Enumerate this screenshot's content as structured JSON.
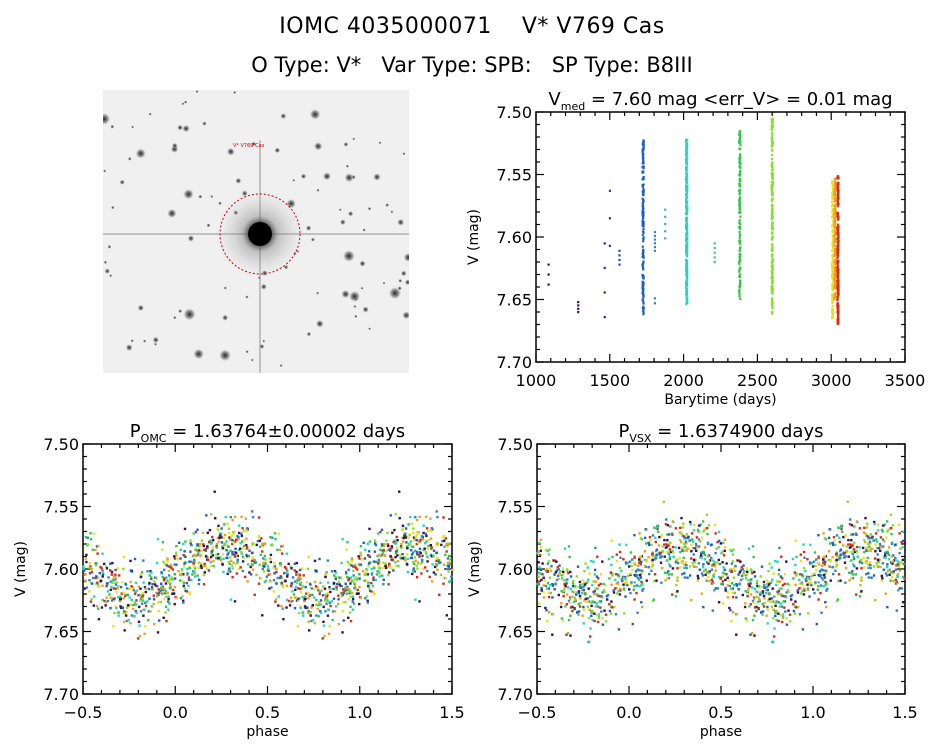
{
  "header": {
    "title": "IOMC 4035000071    V* V769 Cas",
    "subtitle": "O Type: V*   Var Type: SPB:   SP Type: B8III"
  },
  "image_panel": {
    "target_label": "V* V769 Cas",
    "circle_color": "#cc0000",
    "label_color": "#cc0000"
  },
  "chart_data": [
    {
      "id": "light-curve",
      "type": "scatter",
      "title": "V_med = 7.60 mag <err_V> = 0.01 mag",
      "title_parts": {
        "main": "V",
        "sub": "med",
        "rest": " = 7.60 mag <err_V> = 0.01 mag"
      },
      "xlabel": "Barytime (days)",
      "ylabel": "V (mag)",
      "xlim": [
        1000,
        3500
      ],
      "ylim": [
        7.7,
        7.5
      ],
      "y_inverted": true,
      "xticks": [
        1000,
        1500,
        2000,
        2500,
        3000,
        3500
      ],
      "xtick_labels": [
        "1000",
        "1500",
        "2000",
        "2500",
        "3000",
        "3500"
      ],
      "yticks": [
        7.5,
        7.55,
        7.6,
        7.65,
        7.7
      ],
      "ytick_labels": [
        "7.50",
        "7.55",
        "7.60",
        "7.65",
        "7.70"
      ],
      "groups": [
        {
          "t": 1085,
          "mag_min": 7.622,
          "mag_max": 7.638,
          "n": 3,
          "color": "#3a1050"
        },
        {
          "t": 1285,
          "mag_min": 7.652,
          "mag_max": 7.66,
          "n": 4,
          "color": "#4a1070"
        },
        {
          "t": 1465,
          "mag_min": 7.605,
          "mag_max": 7.664,
          "n": 4,
          "color": "#2a2a90"
        },
        {
          "t": 1500,
          "mag_min": 7.563,
          "mag_max": 7.607,
          "n": 3,
          "color": "#2a3aa0"
        },
        {
          "t": 1565,
          "mag_min": 7.611,
          "mag_max": 7.622,
          "n": 4,
          "color": "#2848a8"
        },
        {
          "t": 1725,
          "mag_min": 7.522,
          "mag_max": 7.662,
          "n": 160,
          "color": "#1f5fc8"
        },
        {
          "t": 1805,
          "mag_min": 7.596,
          "mag_max": 7.611,
          "n": 6,
          "color": "#2f86c8"
        },
        {
          "t": 1805,
          "mag_min": 7.649,
          "mag_max": 7.653,
          "n": 2,
          "color": "#2f86c8"
        },
        {
          "t": 1875,
          "mag_min": 7.578,
          "mag_max": 7.601,
          "n": 5,
          "color": "#3fa8d8"
        },
        {
          "t": 2020,
          "mag_min": 7.522,
          "mag_max": 7.657,
          "n": 260,
          "color": "#22d8b8"
        },
        {
          "t": 2210,
          "mag_min": 7.605,
          "mag_max": 7.62,
          "n": 5,
          "color": "#3cd06a"
        },
        {
          "t": 2380,
          "mag_min": 7.515,
          "mag_max": 7.65,
          "n": 150,
          "color": "#33c84a"
        },
        {
          "t": 2600,
          "mag_min": 7.505,
          "mag_max": 7.662,
          "n": 220,
          "color": "#8adf2a"
        },
        {
          "t": 3010,
          "mag_min": 7.555,
          "mag_max": 7.665,
          "n": 160,
          "color": "#e8e020"
        },
        {
          "t": 3025,
          "mag_min": 7.553,
          "mag_max": 7.65,
          "n": 160,
          "color": "#f0a020"
        },
        {
          "t": 3045,
          "mag_min": 7.551,
          "mag_max": 7.67,
          "n": 220,
          "color": "#dd2a10"
        }
      ]
    },
    {
      "id": "phase-omc",
      "type": "scatter",
      "title": "P_OMC = 1.63764±0.00002 days",
      "title_parts": {
        "main": "P",
        "sub": "OMC",
        "rest": " = 1.63764±0.00002 days"
      },
      "period_days": 1.63764,
      "period_error_days": 2e-05,
      "xlabel": "phase",
      "ylabel": "V (mag)",
      "xlim": [
        -0.5,
        1.5
      ],
      "ylim": [
        7.7,
        7.5
      ],
      "y_inverted": true,
      "xticks": [
        -0.5,
        0.0,
        0.5,
        1.0,
        1.5
      ],
      "xtick_labels": [
        "−0.5",
        "0.0",
        "0.5",
        "1.0",
        "1.5"
      ],
      "yticks": [
        7.5,
        7.55,
        7.6,
        7.65,
        7.7
      ],
      "ytick_labels": [
        "7.50",
        "7.55",
        "7.60",
        "7.65",
        "7.70"
      ],
      "model": {
        "mean": 7.602,
        "amplitude": 0.022,
        "max_phase": 0.28,
        "scatter": 0.022,
        "min_mag": 7.505,
        "max_mag": 7.67
      },
      "colors": [
        "#3a1050",
        "#1f5fc8",
        "#2f86c8",
        "#22d8b8",
        "#33c84a",
        "#8adf2a",
        "#e8e020",
        "#f0a020",
        "#dd2a10"
      ]
    },
    {
      "id": "phase-vsx",
      "type": "scatter",
      "title": "P_VSX = 1.6374900 days",
      "title_parts": {
        "main": "P",
        "sub": "VSX",
        "rest": " = 1.6374900 days"
      },
      "period_days": 1.63749,
      "xlabel": "phase",
      "ylabel": "V (mag)",
      "xlim": [
        -0.5,
        1.5
      ],
      "ylim": [
        7.7,
        7.5
      ],
      "y_inverted": true,
      "xticks": [
        -0.5,
        0.0,
        0.5,
        1.0,
        1.5
      ],
      "xtick_labels": [
        "−0.5",
        "0.0",
        "0.5",
        "1.0",
        "1.5"
      ],
      "yticks": [
        7.5,
        7.55,
        7.6,
        7.65,
        7.7
      ],
      "ytick_labels": [
        "7.50",
        "7.55",
        "7.60",
        "7.65",
        "7.70"
      ],
      "model": {
        "mean": 7.602,
        "amplitude": 0.02,
        "max_phase": 0.27,
        "scatter": 0.024,
        "min_mag": 7.505,
        "max_mag": 7.67
      },
      "colors": [
        "#3a1050",
        "#1f5fc8",
        "#2f86c8",
        "#22d8b8",
        "#33c84a",
        "#8adf2a",
        "#e8e020",
        "#f0a020",
        "#dd2a10"
      ]
    }
  ]
}
